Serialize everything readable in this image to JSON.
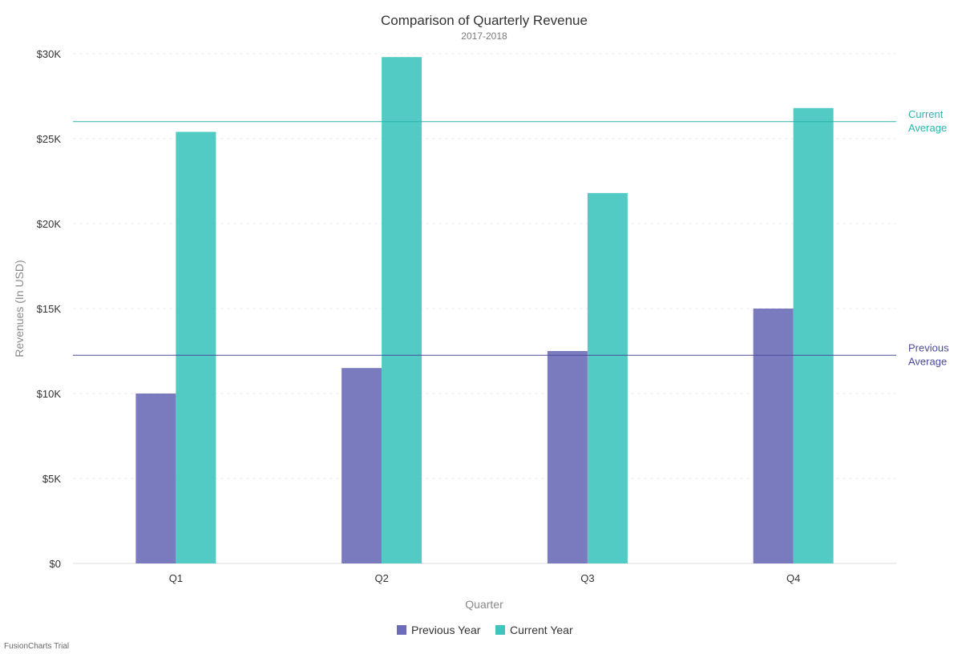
{
  "chart_data": {
    "type": "bar",
    "title": "Comparison of Quarterly Revenue",
    "subtitle": "2017-2018",
    "xlabel": "Quarter",
    "ylabel": "Revenues (In USD)",
    "categories": [
      "Q1",
      "Q2",
      "Q3",
      "Q4"
    ],
    "series": [
      {
        "name": "Previous Year",
        "values": [
          10000,
          11500,
          12500,
          15000
        ],
        "color": "#6c6cb8"
      },
      {
        "name": "Current Year",
        "values": [
          25400,
          29800,
          21800,
          26800
        ],
        "color": "#3ec5bd"
      }
    ],
    "ylim": [
      0,
      30000
    ],
    "yticks": [
      0,
      5000,
      10000,
      15000,
      20000,
      25000,
      30000
    ],
    "ytick_labels": [
      "$0",
      "$5K",
      "$10K",
      "$15K",
      "$20K",
      "$25K",
      "$30K"
    ],
    "grid": true,
    "legend_position": "bottom-center",
    "trendlines": [
      {
        "value": 26000,
        "label_line1": "Current",
        "label_line2": "Average",
        "color": "#2bb5ad"
      },
      {
        "value": 12250,
        "label_line1": "Previous",
        "label_line2": "Average",
        "color": "#4b4b9c"
      }
    ]
  },
  "credit": "FusionCharts Trial"
}
